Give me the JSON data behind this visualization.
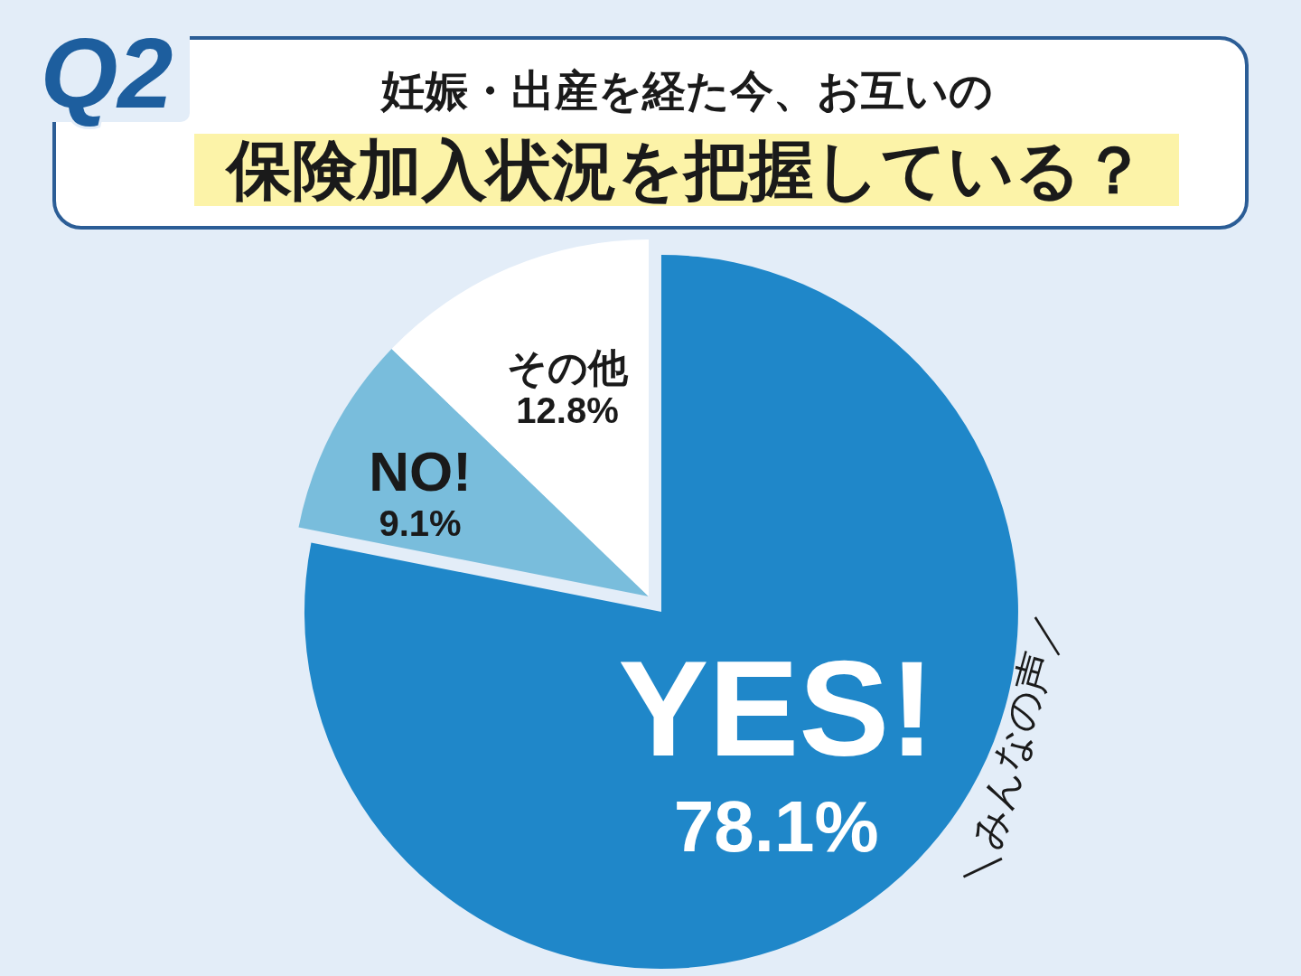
{
  "chart_data": {
    "type": "pie",
    "subtitle": "妊娠・出産を経た今、お互いの",
    "title": "保険加入状況を把握している？",
    "categories": [
      "YES!",
      "NO!",
      "その他"
    ],
    "values": [
      78.1,
      9.1,
      12.8
    ],
    "value_labels": [
      "78.1%",
      "9.1%",
      "12.8%"
    ],
    "colors": [
      "#1f87c9",
      "#79bddc",
      "#ffffff"
    ],
    "annotations": [
      "Q2",
      "＼みんなの声／"
    ],
    "legend": false
  }
}
